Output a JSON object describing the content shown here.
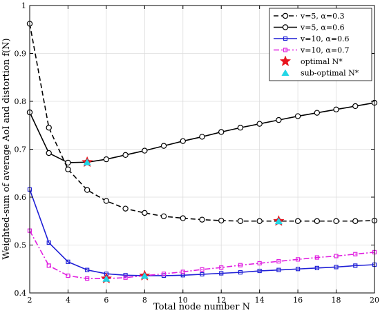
{
  "chart_data": {
    "type": "line",
    "xlabel": "Total node number N",
    "ylabel": "Weighted-sum of average AoI and distortion f(N)",
    "xlim": [
      2,
      20
    ],
    "ylim": [
      0.4,
      1.0
    ],
    "xticks": [
      2,
      4,
      6,
      8,
      10,
      12,
      14,
      16,
      18,
      20
    ],
    "yticks": [
      0.4,
      0.5,
      0.6,
      0.7,
      0.8,
      0.9,
      1.0
    ],
    "x": [
      2,
      3,
      4,
      5,
      6,
      7,
      8,
      9,
      10,
      11,
      12,
      13,
      14,
      15,
      16,
      17,
      18,
      19,
      20
    ],
    "grid": true,
    "legend_position": "top-right",
    "series": [
      {
        "name": "v=5, α=0.3",
        "color": "#000000",
        "dash": "dashed",
        "marker": "circle",
        "values": [
          0.962,
          0.745,
          0.658,
          0.615,
          0.592,
          0.576,
          0.567,
          0.56,
          0.556,
          0.553,
          0.551,
          0.55,
          0.55,
          0.55,
          0.55,
          0.55,
          0.55,
          0.55,
          0.551
        ]
      },
      {
        "name": "v=5, α=0.6",
        "color": "#000000",
        "dash": "solid",
        "marker": "circle",
        "values": [
          0.777,
          0.692,
          0.672,
          0.673,
          0.679,
          0.688,
          0.697,
          0.707,
          0.717,
          0.726,
          0.736,
          0.745,
          0.753,
          0.761,
          0.769,
          0.776,
          0.783,
          0.79,
          0.797
        ]
      },
      {
        "name": "v=10, α=0.6",
        "color": "#1f1fd6",
        "dash": "solid",
        "marker": "square",
        "values": [
          0.616,
          0.505,
          0.465,
          0.448,
          0.44,
          0.437,
          0.436,
          0.436,
          0.437,
          0.439,
          0.441,
          0.443,
          0.446,
          0.448,
          0.45,
          0.452,
          0.454,
          0.457,
          0.459
        ]
      },
      {
        "name": "v=10, α=0.7",
        "color": "#e01ee0",
        "dash": "dashdot",
        "marker": "square",
        "values": [
          0.53,
          0.457,
          0.436,
          0.43,
          0.43,
          0.432,
          0.436,
          0.44,
          0.444,
          0.449,
          0.453,
          0.458,
          0.462,
          0.466,
          0.47,
          0.474,
          0.477,
          0.481,
          0.485
        ]
      }
    ],
    "optimal_points": {
      "name": "optimal N*",
      "color": "#e8141e",
      "marker": "star",
      "points": [
        [
          5,
          0.673
        ],
        [
          15,
          0.55
        ],
        [
          6,
          0.43
        ],
        [
          8,
          0.436
        ]
      ]
    },
    "suboptimal_points": {
      "name": "sub-optimal N*",
      "color": "#22d6e6",
      "marker": "triangle",
      "points": [
        [
          5,
          0.673
        ],
        [
          15,
          0.55
        ],
        [
          6,
          0.43
        ],
        [
          8,
          0.436
        ]
      ]
    }
  }
}
